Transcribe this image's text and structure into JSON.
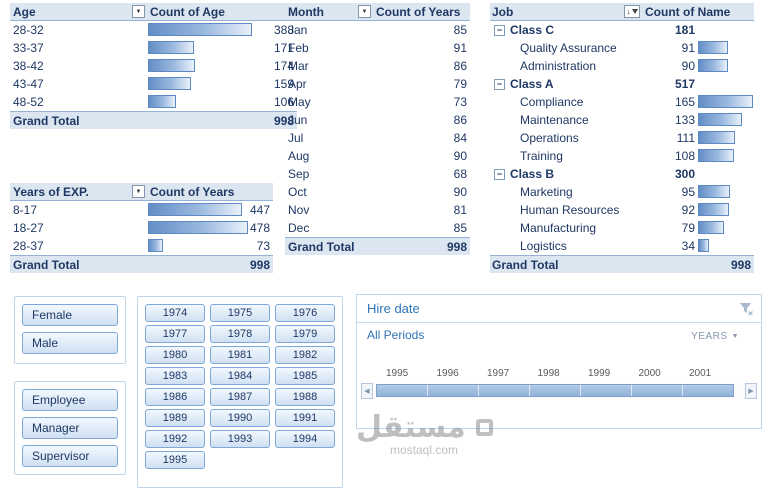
{
  "pivots": {
    "age": {
      "header": {
        "label": "Age",
        "value_header": "Count of Age"
      },
      "rows": [
        {
          "label": "28-32",
          "value": 388
        },
        {
          "label": "33-37",
          "value": 171
        },
        {
          "label": "38-42",
          "value": 174
        },
        {
          "label": "43-47",
          "value": 159
        },
        {
          "label": "48-52",
          "value": 106
        }
      ],
      "bar_max": 388,
      "grand_total": {
        "label": "Grand Total",
        "value": 998
      }
    },
    "exp": {
      "header": {
        "label": "Years of EXP.",
        "value_header": "Count of Years"
      },
      "rows": [
        {
          "label": "8-17",
          "value": 447
        },
        {
          "label": "18-27",
          "value": 478
        },
        {
          "label": "28-37",
          "value": 73
        }
      ],
      "bar_max": 478,
      "grand_total": {
        "label": "Grand Total",
        "value": 998
      }
    },
    "month": {
      "header": {
        "label": "Month",
        "value_header": "Count of Years"
      },
      "rows": [
        {
          "label": "Jan",
          "value": 85
        },
        {
          "label": "Feb",
          "value": 91
        },
        {
          "label": "Mar",
          "value": 86
        },
        {
          "label": "Apr",
          "value": 79
        },
        {
          "label": "May",
          "value": 73
        },
        {
          "label": "Jun",
          "value": 86
        },
        {
          "label": "Jul",
          "value": 84
        },
        {
          "label": "Aug",
          "value": 90
        },
        {
          "label": "Sep",
          "value": 68
        },
        {
          "label": "Oct",
          "value": 90
        },
        {
          "label": "Nov",
          "value": 81
        },
        {
          "label": "Dec",
          "value": 85
        }
      ],
      "grand_total": {
        "label": "Grand Total",
        "value": 998
      }
    },
    "job": {
      "header": {
        "label": "Job",
        "value_header": "Count of Name"
      },
      "rows": [
        {
          "type": "group",
          "label": "Class C",
          "value": 181
        },
        {
          "type": "item",
          "label": "Quality Assurance",
          "value": 91
        },
        {
          "type": "item",
          "label": "Administration",
          "value": 90
        },
        {
          "type": "group",
          "label": "Class A",
          "value": 517
        },
        {
          "type": "item",
          "label": "Compliance",
          "value": 165
        },
        {
          "type": "item",
          "label": "Maintenance",
          "value": 133
        },
        {
          "type": "item",
          "label": "Operations",
          "value": 111
        },
        {
          "type": "item",
          "label": "Training",
          "value": 108
        },
        {
          "type": "group",
          "label": "Class B",
          "value": 300
        },
        {
          "type": "item",
          "label": "Marketing",
          "value": 95
        },
        {
          "type": "item",
          "label": "Human Resources",
          "value": 92
        },
        {
          "type": "item",
          "label": "Manufacturing",
          "value": 79
        },
        {
          "type": "item",
          "label": "Logistics",
          "value": 34
        }
      ],
      "bar_max": 165,
      "grand_total": {
        "label": "Grand Total",
        "value": 998
      }
    }
  },
  "slicers": {
    "gender": {
      "items": [
        "Female",
        "Male"
      ]
    },
    "position": {
      "items": [
        "Employee",
        "Manager",
        "Supervisor"
      ]
    },
    "years": {
      "items": [
        "1974",
        "1975",
        "1976",
        "1977",
        "1978",
        "1979",
        "1980",
        "1981",
        "1982",
        "1983",
        "1984",
        "1985",
        "1986",
        "1987",
        "1988",
        "1989",
        "1990",
        "1991",
        "1992",
        "1993",
        "1994",
        "1995"
      ]
    }
  },
  "timeline": {
    "title": "Hire date",
    "selection_label": "All Periods",
    "period_label": "YEARS",
    "year_ticks": [
      "1995",
      "1996",
      "1997",
      "1998",
      "1999",
      "2000",
      "2001"
    ]
  },
  "watermark": {
    "arabic": "مستقل",
    "domain": "mostaql.com"
  },
  "colors": {
    "accent": "#2E75B6",
    "header_bg": "#DCE6F1",
    "bar_fill": "#638EC6",
    "navy_text": "#1F3864",
    "slicer_border": "#7FA8D8"
  }
}
